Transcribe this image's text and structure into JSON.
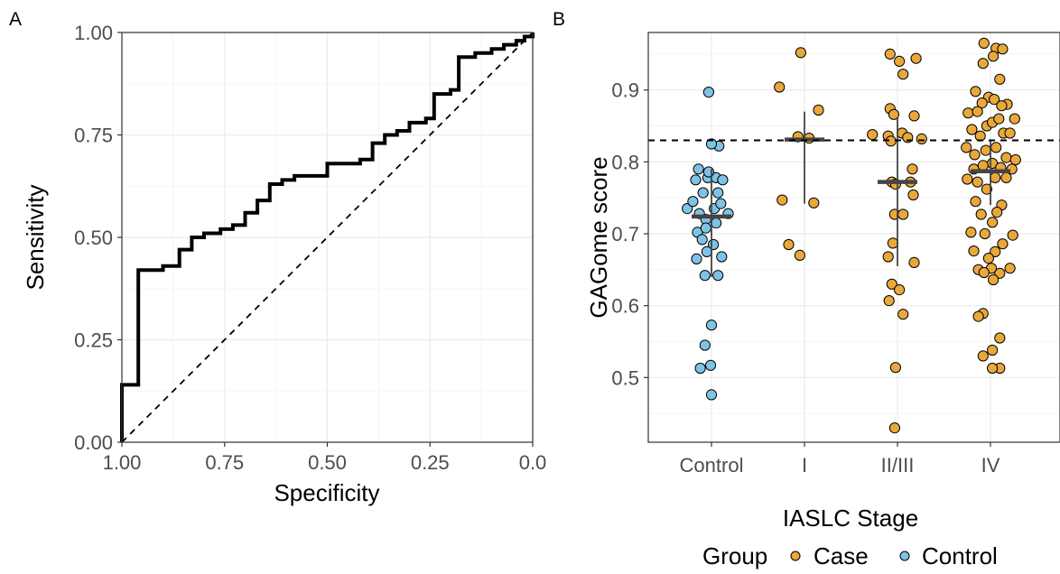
{
  "colors": {
    "case": "#E9A83A",
    "control": "#7EC3E6",
    "line": "#000000",
    "median": "#444444"
  },
  "chart_data": [
    {
      "panel": "A",
      "type": "line",
      "xlabel": "Specificity",
      "ylabel": "Sensitivity",
      "xlim": [
        1.0,
        0.0
      ],
      "ylim": [
        0.0,
        1.0
      ],
      "x_reversed": true,
      "grid": true,
      "xticks": [
        "1.00",
        "0.75",
        "0.50",
        "0.25",
        "0.0"
      ],
      "yticks": [
        "0.00",
        "0.25",
        "0.50",
        "0.75",
        "1.00"
      ],
      "series": [
        {
          "style": "step-solid",
          "points": [
            [
              1.0,
              0.0
            ],
            [
              1.0,
              0.14
            ],
            [
              0.96,
              0.14
            ],
            [
              0.96,
              0.42
            ],
            [
              0.9,
              0.42
            ],
            [
              0.9,
              0.43
            ],
            [
              0.86,
              0.43
            ],
            [
              0.86,
              0.47
            ],
            [
              0.83,
              0.47
            ],
            [
              0.83,
              0.5
            ],
            [
              0.8,
              0.5
            ],
            [
              0.8,
              0.51
            ],
            [
              0.76,
              0.51
            ],
            [
              0.76,
              0.52
            ],
            [
              0.73,
              0.52
            ],
            [
              0.73,
              0.53
            ],
            [
              0.7,
              0.53
            ],
            [
              0.7,
              0.56
            ],
            [
              0.67,
              0.56
            ],
            [
              0.67,
              0.59
            ],
            [
              0.64,
              0.59
            ],
            [
              0.64,
              0.63
            ],
            [
              0.61,
              0.63
            ],
            [
              0.61,
              0.64
            ],
            [
              0.58,
              0.64
            ],
            [
              0.58,
              0.65
            ],
            [
              0.5,
              0.65
            ],
            [
              0.5,
              0.68
            ],
            [
              0.42,
              0.68
            ],
            [
              0.42,
              0.69
            ],
            [
              0.39,
              0.69
            ],
            [
              0.39,
              0.73
            ],
            [
              0.36,
              0.73
            ],
            [
              0.36,
              0.75
            ],
            [
              0.33,
              0.75
            ],
            [
              0.33,
              0.76
            ],
            [
              0.3,
              0.76
            ],
            [
              0.3,
              0.78
            ],
            [
              0.26,
              0.78
            ],
            [
              0.26,
              0.79
            ],
            [
              0.24,
              0.79
            ],
            [
              0.24,
              0.85
            ],
            [
              0.2,
              0.85
            ],
            [
              0.2,
              0.86
            ],
            [
              0.18,
              0.86
            ],
            [
              0.18,
              0.94
            ],
            [
              0.14,
              0.94
            ],
            [
              0.14,
              0.95
            ],
            [
              0.1,
              0.95
            ],
            [
              0.1,
              0.96
            ],
            [
              0.07,
              0.96
            ],
            [
              0.07,
              0.97
            ],
            [
              0.04,
              0.97
            ],
            [
              0.04,
              0.98
            ],
            [
              0.02,
              0.98
            ],
            [
              0.02,
              0.99
            ],
            [
              0.0,
              0.99
            ],
            [
              0.0,
              1.0
            ]
          ]
        },
        {
          "style": "dashed-reference",
          "points": [
            [
              1.0,
              0.0
            ],
            [
              0.0,
              1.0
            ]
          ]
        }
      ]
    },
    {
      "panel": "B",
      "type": "scatter",
      "xlabel": "IASLC Stage",
      "ylabel": "GAGome score",
      "categories": [
        "Control",
        "I",
        "II/III",
        "IV"
      ],
      "ylim": [
        0.41,
        0.98
      ],
      "yticks": [
        "0.5",
        "0.6",
        "0.7",
        "0.8",
        "0.9"
      ],
      "grid": true,
      "threshold": 0.83,
      "legend": {
        "title": "Group",
        "position": "bottom-right",
        "entries": [
          "Case",
          "Control"
        ]
      },
      "series": [
        {
          "name": "Control",
          "category": "Control",
          "median": 0.724,
          "range": [
            0.64,
            0.79
          ],
          "points": [
            [
              -0.26,
              0.735
            ],
            [
              -0.2,
              0.745
            ],
            [
              -0.13,
              0.728
            ],
            [
              -0.06,
              0.72
            ],
            [
              0.03,
              0.735
            ],
            [
              0.1,
              0.742
            ],
            [
              0.18,
              0.728
            ],
            [
              -0.15,
              0.702
            ],
            [
              -0.06,
              0.708
            ],
            [
              0.05,
              0.715
            ],
            [
              -0.1,
              0.692
            ],
            [
              0.02,
              0.685
            ],
            [
              -0.05,
              0.675
            ],
            [
              -0.16,
              0.665
            ],
            [
              0.11,
              0.668
            ],
            [
              -0.07,
              0.642
            ],
            [
              0.07,
              0.642
            ],
            [
              -0.09,
              0.757
            ],
            [
              0.07,
              0.757
            ],
            [
              -0.04,
              0.778
            ],
            [
              0.05,
              0.778
            ],
            [
              0.12,
              0.775
            ],
            [
              -0.17,
              0.775
            ],
            [
              -0.14,
              0.79
            ],
            [
              -0.03,
              0.786
            ],
            [
              0.08,
              0.822
            ],
            [
              0.0,
              0.825
            ],
            [
              -0.03,
              0.897
            ],
            [
              0.0,
              0.573
            ],
            [
              -0.07,
              0.545
            ],
            [
              -0.12,
              0.513
            ],
            [
              -0.01,
              0.517
            ],
            [
              0.0,
              0.476
            ]
          ]
        },
        {
          "name": "Case",
          "category": "I",
          "median": 0.831,
          "range": [
            0.742,
            0.87
          ],
          "points": [
            [
              -0.04,
              0.952
            ],
            [
              -0.27,
              0.904
            ],
            [
              0.15,
              0.872
            ],
            [
              -0.07,
              0.835
            ],
            [
              0.05,
              0.833
            ],
            [
              -0.24,
              0.747
            ],
            [
              0.1,
              0.743
            ],
            [
              -0.17,
              0.685
            ],
            [
              -0.05,
              0.67
            ]
          ]
        },
        {
          "name": "Case",
          "category": "II/III",
          "median": 0.772,
          "range": [
            0.655,
            0.862
          ],
          "points": [
            [
              -0.08,
              0.95
            ],
            [
              0.2,
              0.944
            ],
            [
              0.02,
              0.94
            ],
            [
              0.06,
              0.922
            ],
            [
              -0.08,
              0.874
            ],
            [
              -0.04,
              0.866
            ],
            [
              0.18,
              0.864
            ],
            [
              -0.27,
              0.838
            ],
            [
              -0.1,
              0.836
            ],
            [
              0.05,
              0.84
            ],
            [
              0.11,
              0.834
            ],
            [
              0.26,
              0.832
            ],
            [
              -0.07,
              0.829
            ],
            [
              0.16,
              0.79
            ],
            [
              -0.06,
              0.772
            ],
            [
              0.14,
              0.772
            ],
            [
              -0.02,
              0.769
            ],
            [
              0.17,
              0.754
            ],
            [
              -0.03,
              0.727
            ],
            [
              0.06,
              0.727
            ],
            [
              -0.05,
              0.687
            ],
            [
              -0.1,
              0.668
            ],
            [
              0.18,
              0.66
            ],
            [
              -0.06,
              0.63
            ],
            [
              0.02,
              0.622
            ],
            [
              -0.09,
              0.607
            ],
            [
              0.06,
              0.588
            ],
            [
              -0.02,
              0.514
            ],
            [
              -0.03,
              0.43
            ]
          ]
        },
        {
          "name": "Case",
          "category": "IV",
          "median": 0.787,
          "range": [
            0.74,
            0.83
          ],
          "points": [
            [
              -0.07,
              0.965
            ],
            [
              0.06,
              0.958
            ],
            [
              0.13,
              0.957
            ],
            [
              -0.08,
              0.937
            ],
            [
              0.03,
              0.947
            ],
            [
              0.1,
              0.915
            ],
            [
              -0.16,
              0.898
            ],
            [
              -0.02,
              0.89
            ],
            [
              0.04,
              0.887
            ],
            [
              0.18,
              0.88
            ],
            [
              -0.09,
              0.882
            ],
            [
              -0.24,
              0.868
            ],
            [
              -0.14,
              0.87
            ],
            [
              0.12,
              0.878
            ],
            [
              -0.2,
              0.845
            ],
            [
              -0.04,
              0.85
            ],
            [
              0.02,
              0.855
            ],
            [
              0.09,
              0.86
            ],
            [
              0.26,
              0.86
            ],
            [
              -0.11,
              0.836
            ],
            [
              0.14,
              0.84
            ],
            [
              0.21,
              0.84
            ],
            [
              -0.26,
              0.82
            ],
            [
              -0.17,
              0.81
            ],
            [
              -0.05,
              0.816
            ],
            [
              0.06,
              0.82
            ],
            [
              0.17,
              0.806
            ],
            [
              0.27,
              0.803
            ],
            [
              0.02,
              0.798
            ],
            [
              0.23,
              0.79
            ],
            [
              -0.18,
              0.79
            ],
            [
              -0.08,
              0.795
            ],
            [
              0.11,
              0.792
            ],
            [
              0.17,
              0.778
            ],
            [
              -0.25,
              0.776
            ],
            [
              -0.14,
              0.772
            ],
            [
              0.05,
              0.778
            ],
            [
              -0.04,
              0.762
            ],
            [
              0.12,
              0.74
            ],
            [
              -0.16,
              0.745
            ],
            [
              0.07,
              0.73
            ],
            [
              -0.1,
              0.727
            ],
            [
              0.02,
              0.716
            ],
            [
              -0.21,
              0.702
            ],
            [
              0.24,
              0.698
            ],
            [
              -0.06,
              0.7
            ],
            [
              0.13,
              0.686
            ],
            [
              0.05,
              0.675
            ],
            [
              -0.18,
              0.676
            ],
            [
              -0.02,
              0.666
            ],
            [
              0.21,
              0.652
            ],
            [
              -0.13,
              0.65
            ],
            [
              0.1,
              0.645
            ],
            [
              0.01,
              0.652
            ],
            [
              -0.07,
              0.646
            ],
            [
              0.03,
              0.636
            ],
            [
              -0.08,
              0.589
            ],
            [
              -0.13,
              0.585
            ],
            [
              0.1,
              0.555
            ],
            [
              0.02,
              0.538
            ],
            [
              -0.08,
              0.53
            ],
            [
              0.1,
              0.513
            ],
            [
              0.02,
              0.513
            ]
          ]
        }
      ]
    }
  ]
}
